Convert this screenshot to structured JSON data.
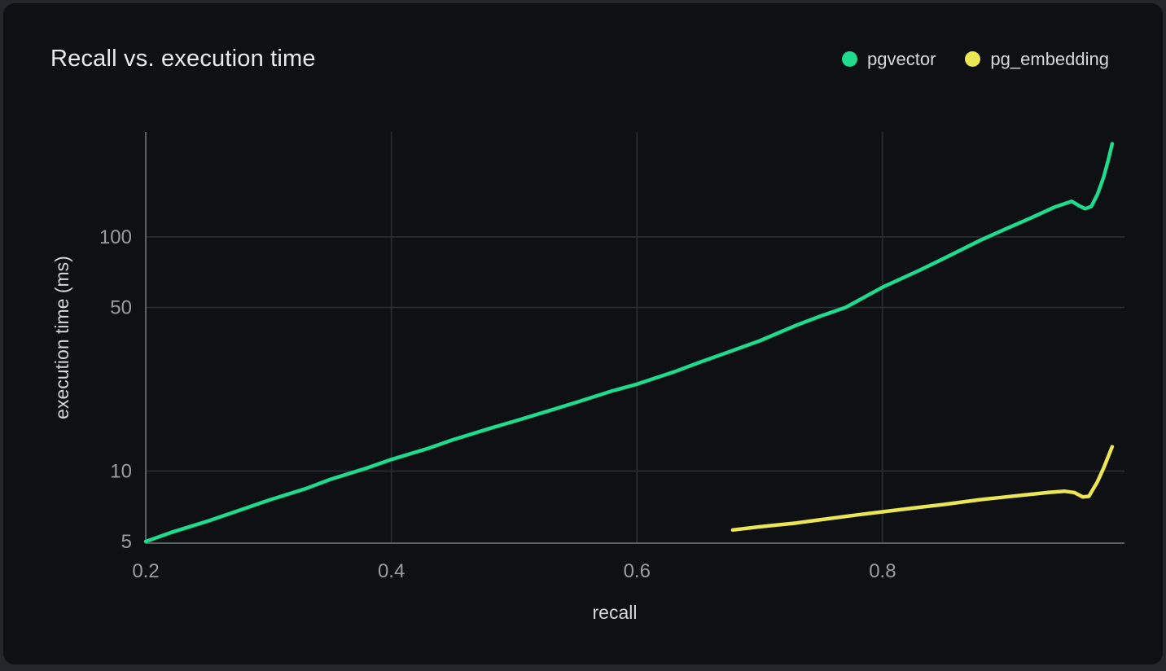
{
  "card": {
    "title": "Recall vs. execution time"
  },
  "colors": {
    "background_outer": "#24262b",
    "background_card": "#0f1013",
    "gridline": "#2b2e34",
    "axis": "#5b5f66",
    "tick_label": "#9a9da2",
    "axis_title": "#d5d7da",
    "title_text": "#e9eaec",
    "pgvector_green": "#1edb8d",
    "pg_embedding_yellow": "#ebe655"
  },
  "chart_data": {
    "type": "line",
    "title": "Recall vs. execution time",
    "xlabel": "recall",
    "ylabel": "execution time (ms)",
    "xlim": [
      0.2,
      0.997
    ],
    "ylim": [
      5,
      281
    ],
    "yscale": "log",
    "xticks": [
      0.2,
      0.4,
      0.6,
      0.8
    ],
    "yticks": [
      5,
      10,
      50,
      100
    ],
    "grid": true,
    "legend_position": "top-right",
    "series": [
      {
        "name": "pgvector",
        "color": "#1edb8d",
        "points": [
          [
            0.2,
            5.0
          ],
          [
            0.22,
            5.45
          ],
          [
            0.25,
            6.1
          ],
          [
            0.28,
            6.9
          ],
          [
            0.3,
            7.5
          ],
          [
            0.33,
            8.4
          ],
          [
            0.35,
            9.2
          ],
          [
            0.38,
            10.3
          ],
          [
            0.4,
            11.2
          ],
          [
            0.43,
            12.5
          ],
          [
            0.45,
            13.6
          ],
          [
            0.48,
            15.2
          ],
          [
            0.5,
            16.3
          ],
          [
            0.53,
            18.2
          ],
          [
            0.55,
            19.6
          ],
          [
            0.58,
            22.0
          ],
          [
            0.6,
            23.5
          ],
          [
            0.63,
            26.5
          ],
          [
            0.65,
            29.0
          ],
          [
            0.68,
            33.0
          ],
          [
            0.7,
            36.0
          ],
          [
            0.73,
            42.0
          ],
          [
            0.75,
            46.0
          ],
          [
            0.77,
            50.0
          ],
          [
            0.8,
            61.0
          ],
          [
            0.83,
            72.0
          ],
          [
            0.85,
            81.0
          ],
          [
            0.88,
            97.0
          ],
          [
            0.9,
            108.0
          ],
          [
            0.92,
            120.0
          ],
          [
            0.94,
            134.0
          ],
          [
            0.954,
            142.0
          ],
          [
            0.96,
            136.0
          ],
          [
            0.965,
            132.0
          ],
          [
            0.97,
            135.0
          ],
          [
            0.975,
            152.0
          ],
          [
            0.98,
            180.0
          ],
          [
            0.984,
            215.0
          ],
          [
            0.987,
            250.0
          ]
        ]
      },
      {
        "name": "pg_embedding",
        "color": "#ebe655",
        "points": [
          [
            0.678,
            5.6
          ],
          [
            0.7,
            5.78
          ],
          [
            0.73,
            6.0
          ],
          [
            0.75,
            6.2
          ],
          [
            0.78,
            6.5
          ],
          [
            0.8,
            6.7
          ],
          [
            0.83,
            7.0
          ],
          [
            0.85,
            7.2
          ],
          [
            0.88,
            7.55
          ],
          [
            0.9,
            7.75
          ],
          [
            0.92,
            7.95
          ],
          [
            0.935,
            8.1
          ],
          [
            0.948,
            8.2
          ],
          [
            0.956,
            8.1
          ],
          [
            0.963,
            7.75
          ],
          [
            0.968,
            7.8
          ],
          [
            0.975,
            9.0
          ],
          [
            0.98,
            10.3
          ],
          [
            0.987,
            12.7
          ]
        ]
      }
    ]
  }
}
